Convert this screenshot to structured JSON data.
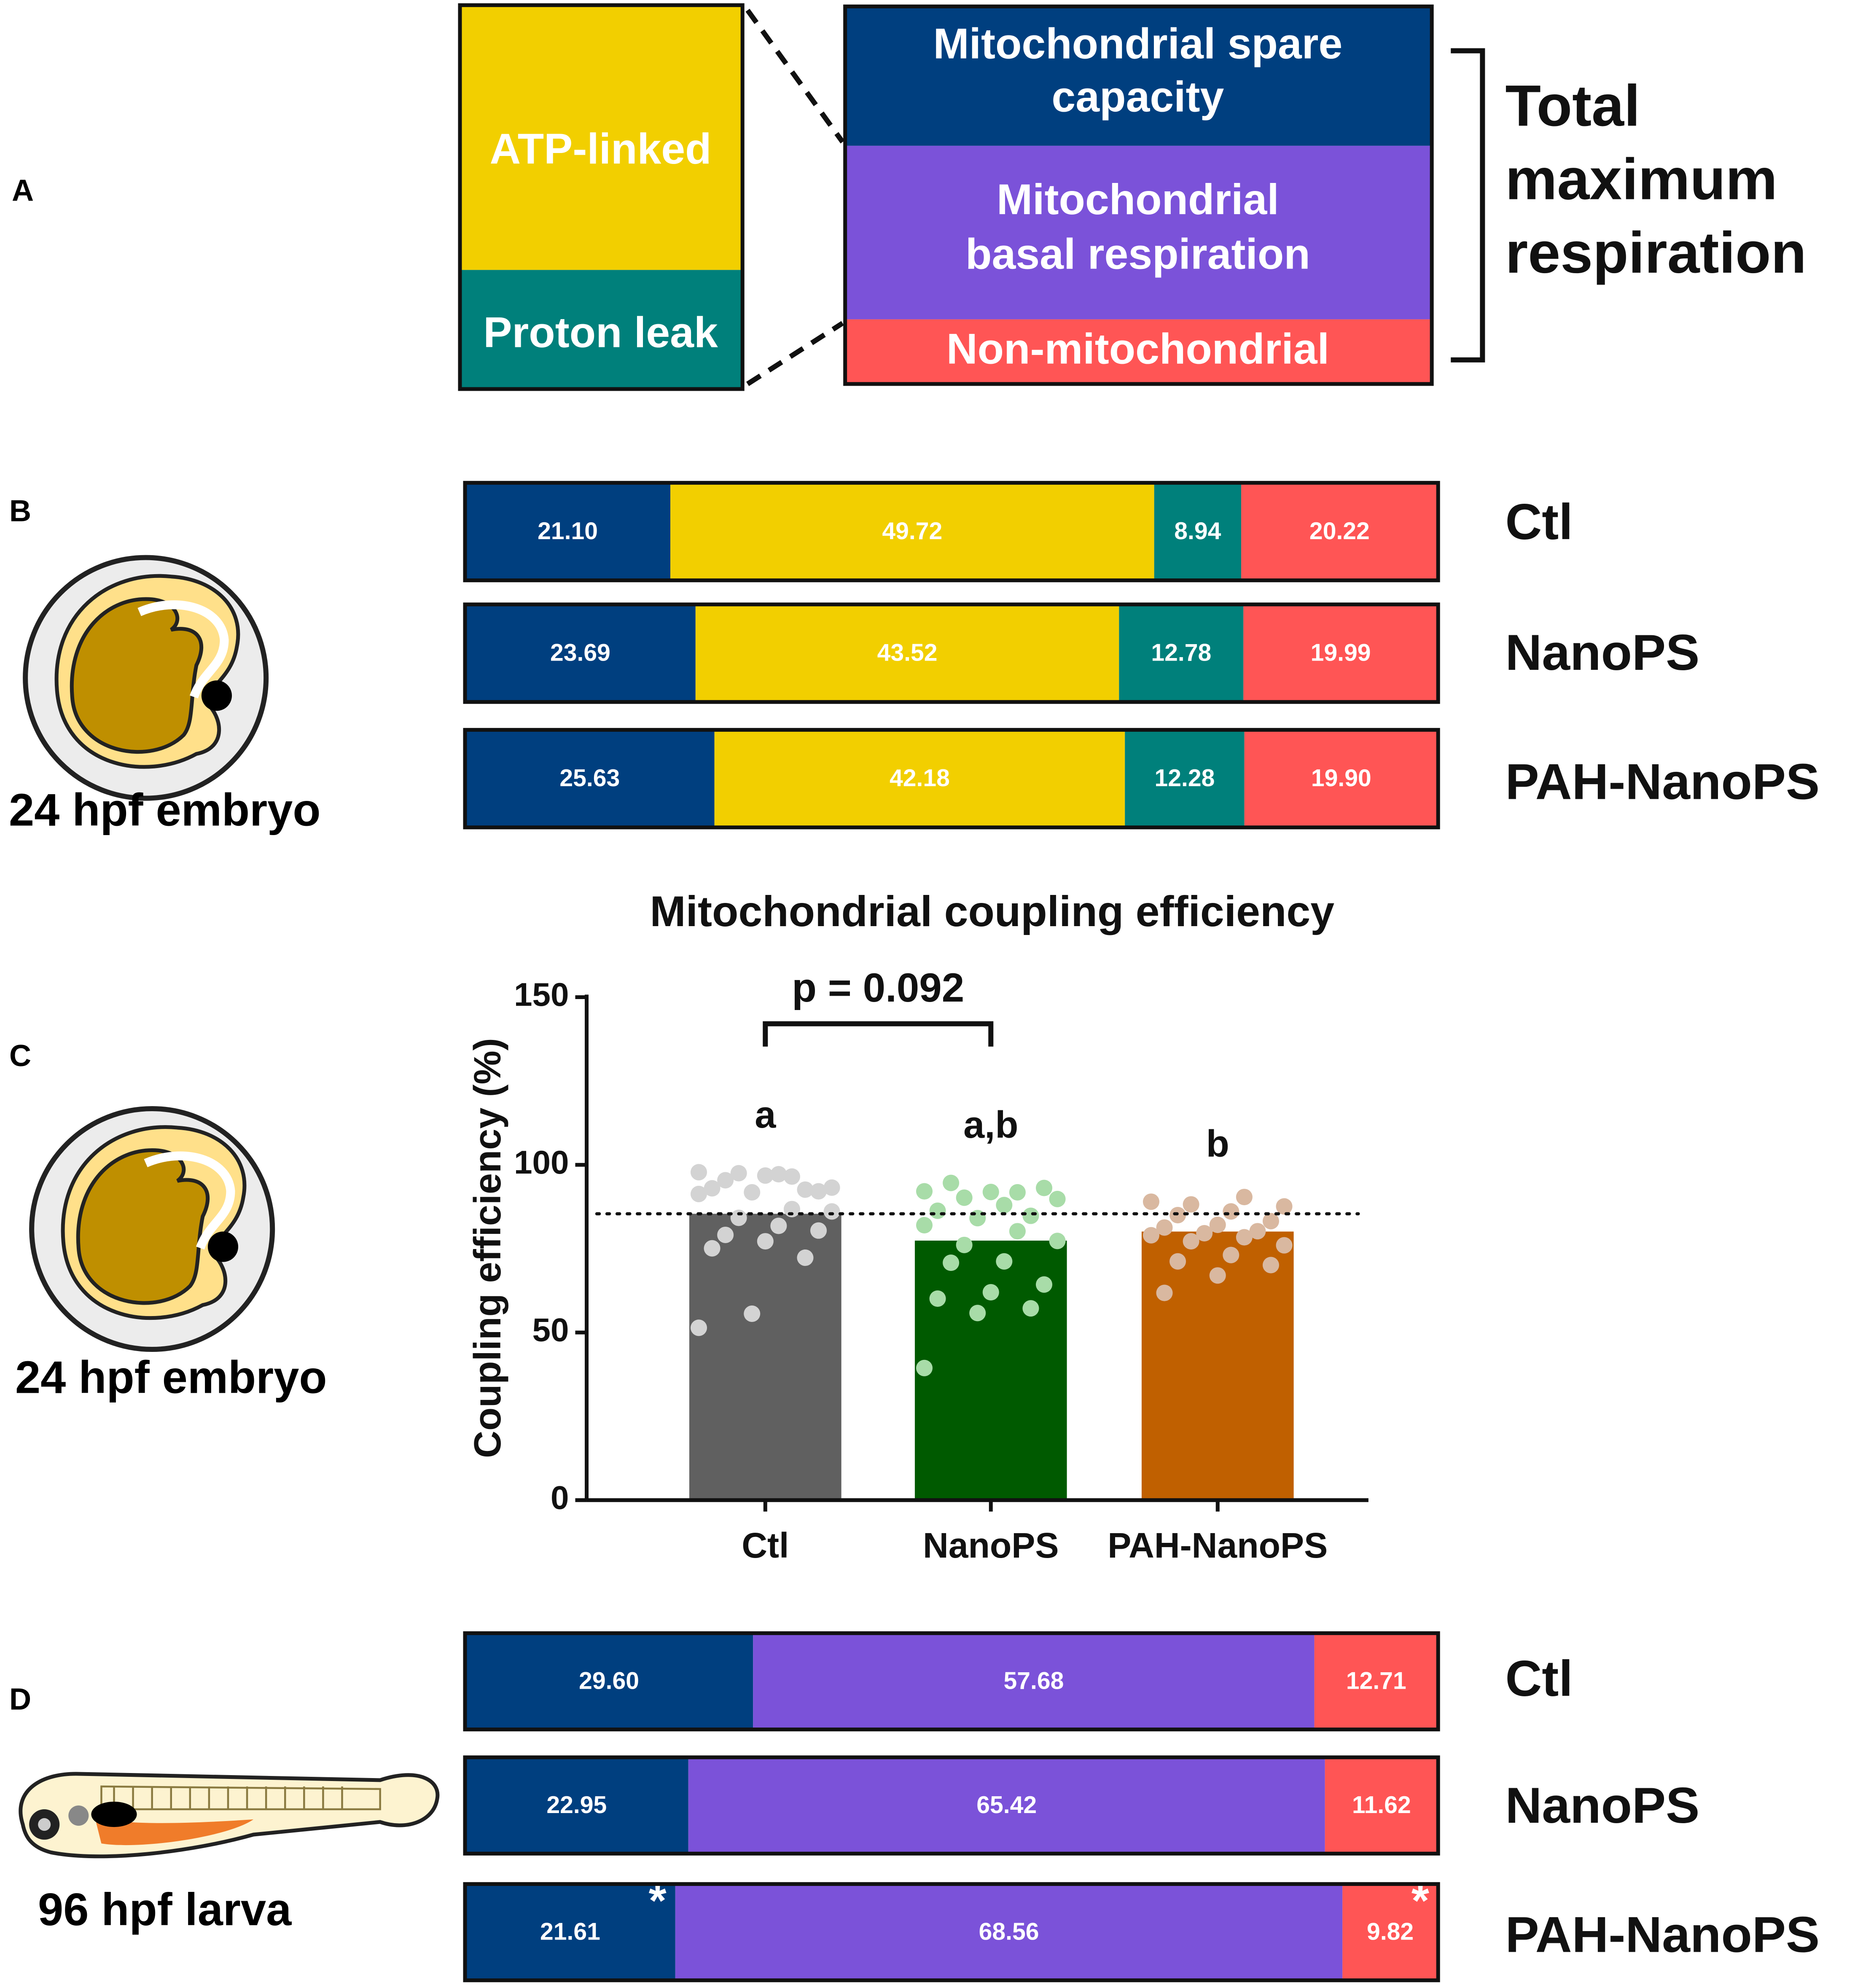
{
  "panel_labels": [
    "A",
    "B",
    "C",
    "D"
  ],
  "legend": {
    "left": [
      {
        "text": "ATP-linked",
        "color": "#f2cf00"
      },
      {
        "text": "Proton leak",
        "color": "#00807b"
      }
    ],
    "right": [
      {
        "lines": [
          "Mitochondrial spare",
          "capacity"
        ],
        "color": "#003f7f"
      },
      {
        "lines": [
          "Mitochondrial",
          "basal respiration"
        ],
        "color": "#7b52d9"
      },
      {
        "lines": [
          "Non-mitochondrial"
        ],
        "color": "#ff5555"
      }
    ],
    "bracket_label": [
      "Total",
      "maximum",
      "respiration"
    ]
  },
  "organisms": [
    "24 hpf embryo",
    "24 hpf embryo",
    "96 hpf larva"
  ],
  "chart_data": [
    {
      "type": "stacked_bar_horizontal",
      "categories": [
        "Ctl",
        "NanoPS",
        "PAH-NanoPS"
      ],
      "xlim": [
        0,
        100
      ],
      "series": [
        {
          "color": "#003f7f",
          "values": [
            21.1,
            23.69,
            25.63
          ],
          "value_labels": [
            "21.10",
            "23.69",
            "25.63"
          ]
        },
        {
          "color": "#f2cf00",
          "values": [
            49.72,
            43.52,
            42.18
          ],
          "value_labels": [
            "49.72",
            "43.52",
            "42.18"
          ]
        },
        {
          "color": "#00807b",
          "values": [
            8.94,
            12.78,
            12.28
          ],
          "value_labels": [
            "8.94",
            "12.78",
            "12.28"
          ]
        },
        {
          "color": "#ff5555",
          "values": [
            20.22,
            19.99,
            19.9
          ],
          "value_labels": [
            "20.22",
            "19.99",
            "19.90"
          ]
        }
      ]
    },
    {
      "type": "bar_dot",
      "title": "Mitochondrial coupling efficiency",
      "y_label": "Coupling efficiency (%)",
      "categories": [
        "Ctl",
        "NanoPS",
        "PAH-NanoPS"
      ],
      "values": [
        85.4,
        77.4,
        80.1
      ],
      "colors": [
        "#606060",
        "#005a00",
        "#c06000"
      ],
      "point_colors": [
        "#d3d3d3",
        "#a8dca8",
        "#d9b8a0"
      ],
      "points": [
        [
          97.8,
          96.5,
          97.5,
          93.2,
          97.2,
          95.4,
          92.1,
          96.8,
          93.0,
          92.6,
          91.8,
          91.3,
          86.8,
          84.2,
          86.1,
          81.8,
          79.1,
          80.4,
          77.2,
          75.1,
          72.3,
          55.6,
          51.4
        ],
        [
          92.1,
          91.8,
          90.2,
          89.8,
          88.0,
          94.6,
          93.1,
          91.9,
          86.3,
          84.8,
          84.1,
          82.0,
          80.2,
          76.1,
          77.3,
          71.2,
          70.8,
          64.3,
          62.0,
          60.1,
          57.2,
          55.8,
          39.4
        ],
        [
          89.0,
          90.4,
          88.2,
          87.6,
          86.1,
          85.0,
          83.2,
          82.1,
          81.3,
          80.2,
          79.6,
          79.0,
          78.4,
          77.2,
          76.0,
          73.1,
          71.2,
          70.1,
          67.0,
          61.8
        ]
      ],
      "reference_line": 85.4,
      "group_letters": [
        "a",
        "a,b",
        "b"
      ],
      "bracket": {
        "label": "p = 0.092",
        "from": "Ctl",
        "to": "NanoPS"
      },
      "ylim": [
        0,
        150
      ],
      "yticks": [
        0,
        50,
        100,
        150
      ]
    },
    {
      "type": "stacked_bar_horizontal",
      "categories": [
        "Ctl",
        "NanoPS",
        "PAH-NanoPS"
      ],
      "xlim": [
        0,
        100
      ],
      "series": [
        {
          "color": "#003f7f",
          "values": [
            29.6,
            22.95,
            21.61
          ],
          "value_labels": [
            "29.60",
            "22.95",
            "21.61"
          ],
          "markers": [
            null,
            null,
            "*"
          ]
        },
        {
          "color": "#7b52d9",
          "values": [
            57.68,
            65.42,
            68.56
          ],
          "value_labels": [
            "57.68",
            "65.42",
            "68.56"
          ]
        },
        {
          "color": "#ff5555",
          "values": [
            12.71,
            11.62,
            9.82
          ],
          "value_labels": [
            "12.71",
            "11.62",
            "9.82"
          ],
          "markers": [
            null,
            null,
            "*"
          ]
        }
      ]
    }
  ]
}
